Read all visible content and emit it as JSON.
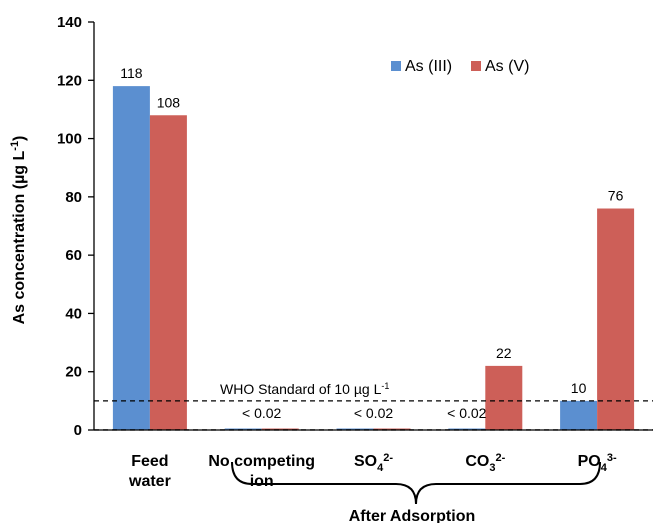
{
  "chart_data": {
    "type": "bar",
    "title": "",
    "ylabel": "As concentration (µg L⁻¹)",
    "ylim": [
      0,
      140
    ],
    "yticks": [
      0,
      20,
      40,
      60,
      80,
      100,
      120,
      140
    ],
    "categories": [
      "Feed water",
      "No competing ion",
      "SO₄²⁻",
      "CO₃²⁻",
      "PO₄³⁻"
    ],
    "group_label": "After Adsorption",
    "series": [
      {
        "name": "As (III)",
        "color": "#5b8fd0",
        "values": [
          118,
          0.02,
          0.02,
          0.02,
          10
        ]
      },
      {
        "name": "As (V)",
        "color": "#cd5f58",
        "values": [
          108,
          0.02,
          0.02,
          22,
          76
        ]
      }
    ],
    "data_labels": [
      {
        "category": 0,
        "series": 0,
        "text": "118"
      },
      {
        "category": 0,
        "series": 1,
        "text": "108"
      },
      {
        "category": 1,
        "series": "both",
        "text": "< 0.02"
      },
      {
        "category": 2,
        "series": "both",
        "text": "< 0.02"
      },
      {
        "category": 3,
        "series": 0,
        "text": "< 0.02"
      },
      {
        "category": 3,
        "series": 1,
        "text": "22"
      },
      {
        "category": 4,
        "series": 0,
        "text": "10"
      },
      {
        "category": 4,
        "series": 1,
        "text": "76"
      }
    ],
    "reference_lines": [
      {
        "value": 10,
        "style": "dashed",
        "label": "WHO Standard of 10 µg L⁻¹"
      },
      {
        "value": 0.02,
        "style": "dashed",
        "label": ""
      }
    ],
    "legend": {
      "position": "top-right"
    },
    "grid": false
  }
}
